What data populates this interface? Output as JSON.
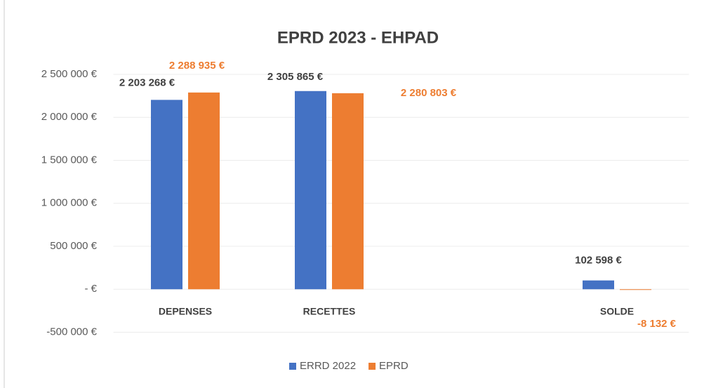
{
  "chart_data": {
    "type": "bar",
    "title": "EPRD 2023 - EHPAD",
    "categories": [
      "DEPENSES",
      "RECETTES",
      null,
      "SOLDE"
    ],
    "series": [
      {
        "name": "ERRD 2022",
        "color": "#4472c4",
        "values": [
          2203268,
          2305865,
          null,
          102598
        ],
        "value_labels": [
          "2 203 268 €",
          "2 305 865 €",
          null,
          "102 598 €"
        ]
      },
      {
        "name": "EPRD",
        "color": "#ed7d31",
        "values": [
          2288935,
          2280803,
          null,
          -8132
        ],
        "value_labels": [
          "2 288 935 €",
          "2 280 803 €",
          null,
          "-8 132 €"
        ]
      }
    ],
    "ylim": [
      -500000,
      2500000
    ],
    "yticks": [
      {
        "value": -500000,
        "label": "-500 000 €"
      },
      {
        "value": 0,
        "label": "-   €"
      },
      {
        "value": 500000,
        "label": "500 000 €"
      },
      {
        "value": 1000000,
        "label": "1 000 000 €"
      },
      {
        "value": 1500000,
        "label": "1 500 000 €"
      },
      {
        "value": 2000000,
        "label": "2 000 000 €"
      },
      {
        "value": 2500000,
        "label": "2 500 000 €"
      }
    ],
    "grid": true,
    "legend": "bottom"
  }
}
